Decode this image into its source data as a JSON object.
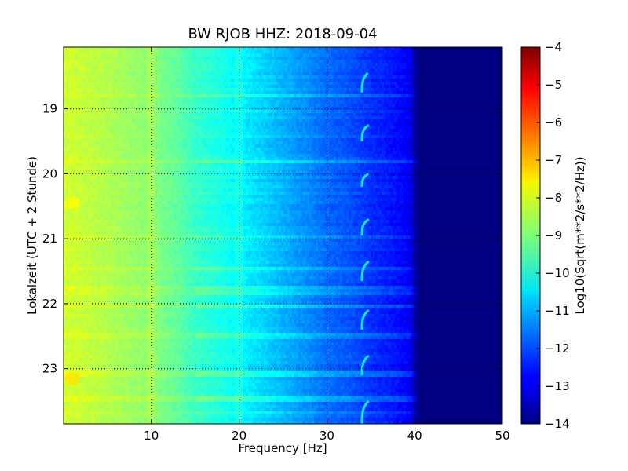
{
  "chart_data": {
    "type": "heatmap",
    "title": "BW RJOB HHZ: 2018-09-04",
    "xlabel": "Frequency [Hz]",
    "ylabel": "Lokalzeit (UTC + 2 Stunde)",
    "xlim": [
      0,
      50
    ],
    "ylim": [
      18.05,
      23.85
    ],
    "y_inverted": true,
    "x_ticks": [
      10,
      20,
      30,
      40,
      50
    ],
    "y_ticks": [
      19,
      20,
      21,
      22,
      23
    ],
    "grid": true,
    "colormap": "jet",
    "colorbar": {
      "label": "Log10(Sqrt(m**2/s**2/Hz))",
      "range": [
        -14,
        -4
      ],
      "ticks": [
        -4,
        -5,
        -6,
        -7,
        -8,
        -9,
        -10,
        -11,
        -12,
        -13,
        -14
      ]
    },
    "spectrum_profile": {
      "freq": [
        0,
        2,
        5,
        10,
        13,
        15,
        18,
        20,
        23,
        25,
        28,
        30,
        33,
        35,
        38,
        39.5,
        40.5,
        50
      ],
      "log_amp": [
        -8.2,
        -8.3,
        -8.5,
        -8.9,
        -9.3,
        -9.7,
        -10.0,
        -10.3,
        -10.7,
        -11.0,
        -11.4,
        -11.7,
        -12.0,
        -12.3,
        -12.6,
        -12.9,
        -14.0,
        -14.0
      ]
    },
    "tones": [
      {
        "freq_start": 34.5,
        "freq_end": 34.0,
        "time_start": 18.45,
        "time_end": 18.75
      },
      {
        "freq_start": 34.6,
        "freq_end": 34.0,
        "time_start": 19.25,
        "time_end": 19.5
      },
      {
        "freq_start": 34.6,
        "freq_end": 34.0,
        "time_start": 20.0,
        "time_end": 20.2
      },
      {
        "freq_start": 34.6,
        "freq_end": 34.0,
        "time_start": 20.7,
        "time_end": 20.95
      },
      {
        "freq_start": 34.6,
        "freq_end": 34.0,
        "time_start": 21.35,
        "time_end": 21.65
      },
      {
        "freq_start": 34.6,
        "freq_end": 34.0,
        "time_start": 22.1,
        "time_end": 22.4
      },
      {
        "freq_start": 34.6,
        "freq_end": 34.0,
        "time_start": 22.8,
        "time_end": 23.1
      },
      {
        "freq_start": 34.6,
        "freq_end": 34.0,
        "time_start": 23.5,
        "time_end": 23.85
      }
    ],
    "bright_spots": [
      {
        "freq": 1.0,
        "time": 23.15,
        "log_amp": -7.5
      },
      {
        "freq": 1.0,
        "time": 20.45,
        "log_amp": -7.8
      }
    ]
  }
}
